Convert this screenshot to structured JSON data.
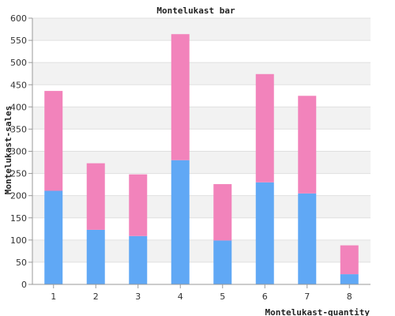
{
  "chart_data": {
    "type": "bar",
    "stacked": true,
    "title": "Montelukast bar",
    "xlabel": "Montelukast-quantity",
    "ylabel": "Montelukast-sales",
    "categories": [
      "1",
      "2",
      "3",
      "4",
      "5",
      "6",
      "7",
      "8"
    ],
    "series": [
      {
        "values": [
          211,
          123,
          109,
          280,
          99,
          230,
          205,
          23
        ],
        "color": "#60a8f5"
      },
      {
        "values": [
          225,
          150,
          139,
          284,
          127,
          244,
          220,
          65
        ],
        "color": "#f283bb"
      }
    ],
    "ylim": [
      0,
      600
    ],
    "yticks": [
      0,
      50,
      100,
      150,
      200,
      250,
      300,
      350,
      400,
      450,
      500,
      550,
      600
    ],
    "grid": true,
    "band_colors": [
      "#ffffff",
      "#f2f2f2"
    ]
  }
}
